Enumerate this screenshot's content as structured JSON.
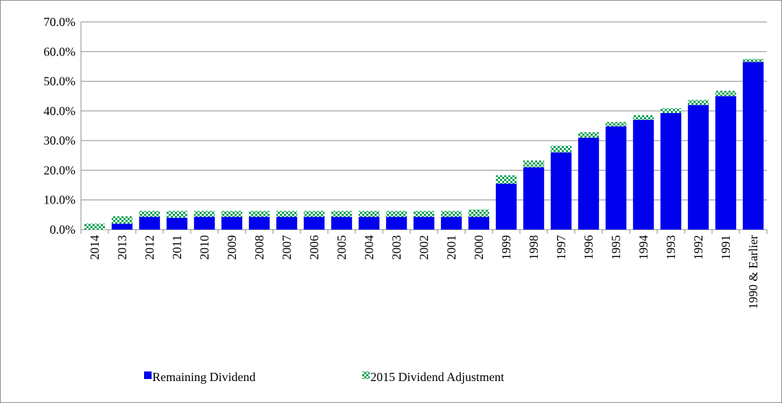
{
  "chart_data": {
    "type": "stacked_bar",
    "categories": [
      "2014",
      "2013",
      "2012",
      "2011",
      "2010",
      "2009",
      "2008",
      "2007",
      "2006",
      "2005",
      "2004",
      "2003",
      "2002",
      "2001",
      "2000",
      "1999",
      "1998",
      "1997",
      "1996",
      "1995",
      "1994",
      "1993",
      "1992",
      "1991",
      "1990 & Earlier"
    ],
    "series": [
      {
        "name": "Remaining Dividend",
        "color": "#0000ee",
        "values": [
          0,
          2.0,
          4.3,
          4.0,
          4.3,
          4.3,
          4.3,
          4.3,
          4.3,
          4.3,
          4.3,
          4.3,
          4.3,
          4.3,
          4.3,
          15.5,
          21.0,
          26.0,
          31.0,
          34.8,
          37.0,
          39.3,
          42.0,
          45.0,
          56.5
        ]
      },
      {
        "name": "2015 Dividend Adjustment",
        "color": "#00a050",
        "values": [
          2.0,
          2.5,
          2.0,
          2.3,
          2.0,
          2.0,
          2.0,
          2.0,
          2.0,
          2.0,
          2.0,
          2.0,
          2.0,
          2.0,
          2.5,
          2.8,
          2.3,
          2.3,
          1.8,
          1.5,
          1.6,
          1.6,
          1.7,
          1.8,
          1.0
        ]
      }
    ],
    "ylim": [
      0,
      70
    ],
    "yticks": [
      {
        "value": 0,
        "label": "0.0%"
      },
      {
        "value": 10,
        "label": "10.0%"
      },
      {
        "value": 20,
        "label": "20.0%"
      },
      {
        "value": 30,
        "label": "30.0%"
      },
      {
        "value": 40,
        "label": "40.0%"
      },
      {
        "value": 50,
        "label": "50.0%"
      },
      {
        "value": 60,
        "label": "60.0%"
      },
      {
        "value": 70,
        "label": "70.0%"
      }
    ],
    "grid": true,
    "legend": "bottom"
  }
}
